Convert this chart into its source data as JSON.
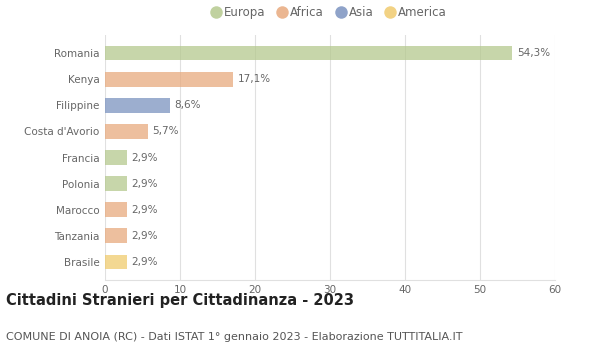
{
  "title": "Cittadini Stranieri per Cittadinanza - 2023",
  "subtitle": "COMUNE DI ANOIA (RC) - Dati ISTAT 1° gennaio 2023 - Elaborazione TUTTITALIA.IT",
  "categories": [
    "Romania",
    "Kenya",
    "Filippine",
    "Costa d'Avorio",
    "Francia",
    "Polonia",
    "Marocco",
    "Tanzania",
    "Brasile"
  ],
  "values": [
    54.3,
    17.1,
    8.6,
    5.7,
    2.9,
    2.9,
    2.9,
    2.9,
    2.9
  ],
  "labels": [
    "54,3%",
    "17,1%",
    "8,6%",
    "5,7%",
    "2,9%",
    "2,9%",
    "2,9%",
    "2,9%",
    "2,9%"
  ],
  "colors": [
    "#b5c98e",
    "#e8aa7e",
    "#7b93c0",
    "#e8aa7e",
    "#b5c98e",
    "#b5c98e",
    "#e8aa7e",
    "#e8aa7e",
    "#f0cb6e"
  ],
  "legend": [
    {
      "label": "Europa",
      "color": "#b5c98e"
    },
    {
      "label": "Africa",
      "color": "#e8aa7e"
    },
    {
      "label": "Asia",
      "color": "#7b93c0"
    },
    {
      "label": "America",
      "color": "#f0cb6e"
    }
  ],
  "xlim": [
    0,
    60
  ],
  "xticks": [
    0,
    10,
    20,
    30,
    40,
    50,
    60
  ],
  "background_color": "#ffffff",
  "grid_color": "#e0e0e0",
  "bar_height": 0.55,
  "title_fontsize": 10.5,
  "subtitle_fontsize": 8,
  "label_fontsize": 7.5,
  "tick_fontsize": 7.5,
  "legend_fontsize": 8.5
}
